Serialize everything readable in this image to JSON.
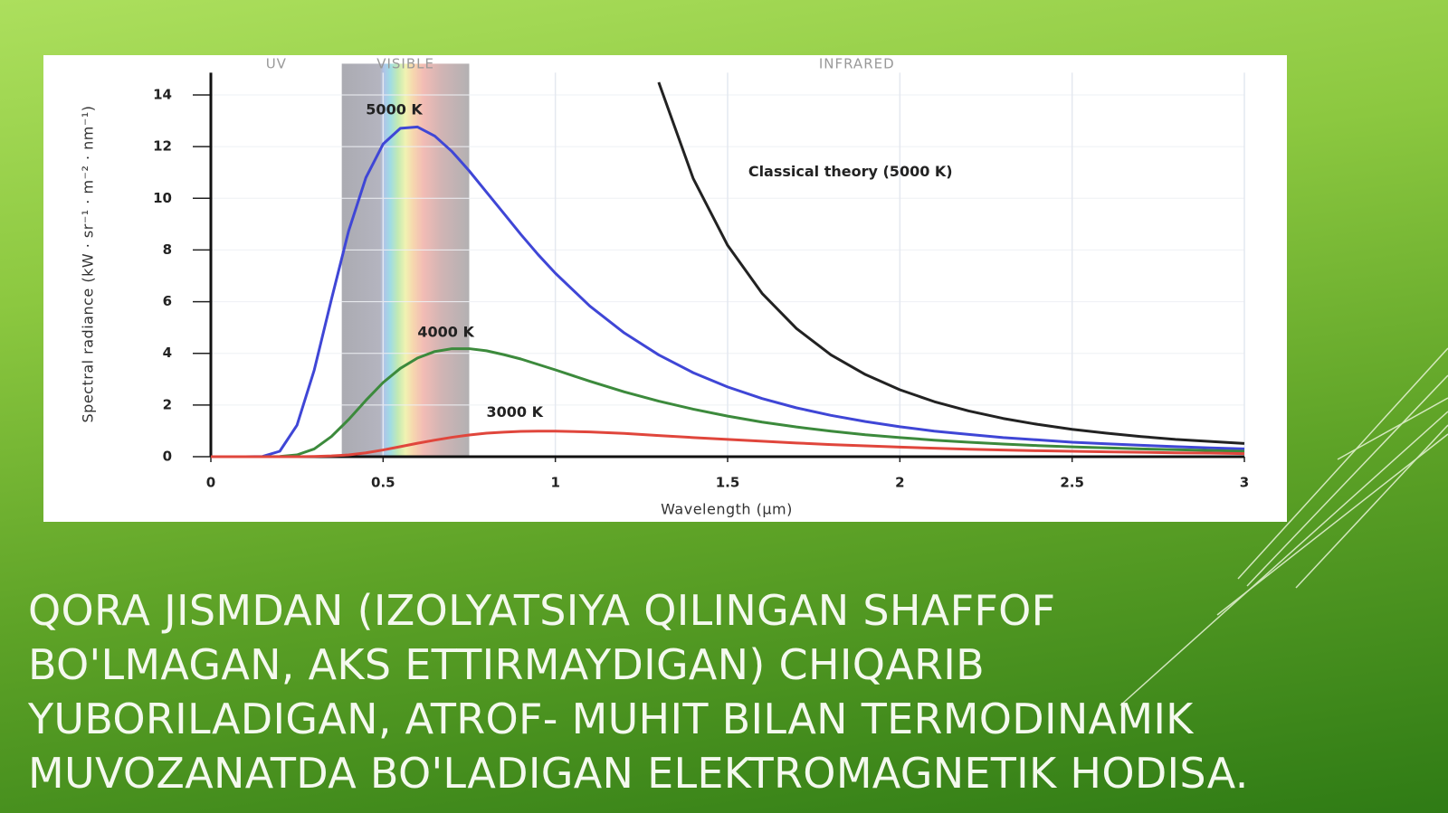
{
  "chart_data": {
    "type": "line",
    "x_label": "Wavelength (μm)",
    "y_label": "Spectral radiance (kW · sr⁻¹ · m⁻² · nm⁻¹)",
    "xlim": [
      0,
      3
    ],
    "ylim": [
      0,
      15
    ],
    "xticks": [
      0,
      0.5,
      1,
      1.5,
      2,
      2.5,
      3
    ],
    "yticks": [
      0,
      2,
      4,
      6,
      8,
      10,
      12,
      14
    ],
    "grid": true,
    "regions": [
      {
        "label": "UV",
        "range": [
          0,
          0.38
        ]
      },
      {
        "label": "VISIBLE",
        "range": [
          0.38,
          0.75
        ]
      },
      {
        "label": "INFRARED",
        "range": [
          0.75,
          3
        ]
      }
    ],
    "x": [
      0,
      0.1,
      0.15,
      0.2,
      0.25,
      0.3,
      0.35,
      0.4,
      0.45,
      0.5,
      0.55,
      0.6,
      0.65,
      0.7,
      0.75,
      0.8,
      0.85,
      0.9,
      0.95,
      1.0,
      1.1,
      1.2,
      1.3,
      1.4,
      1.5,
      1.6,
      1.7,
      1.8,
      1.9,
      2.0,
      2.1,
      2.2,
      2.3,
      2.4,
      2.5,
      2.6,
      2.7,
      2.8,
      2.9,
      3.0
    ],
    "series": [
      {
        "name": "5000 K",
        "color": "#3f46d6",
        "values": [
          0,
          0,
          0.01,
          0.21,
          1.22,
          3.35,
          6.09,
          8.74,
          10.8,
          12.1,
          12.71,
          12.76,
          12.41,
          11.81,
          11.06,
          10.24,
          9.42,
          8.6,
          7.82,
          7.1,
          5.83,
          4.79,
          3.94,
          3.25,
          2.7,
          2.25,
          1.89,
          1.6,
          1.36,
          1.16,
          0.99,
          0.86,
          0.74,
          0.65,
          0.56,
          0.5,
          0.44,
          0.39,
          0.34,
          0.3
        ]
      },
      {
        "name": "4000 K",
        "color": "#3c8a3c",
        "values": [
          0,
          0,
          0,
          0.01,
          0.07,
          0.3,
          0.78,
          1.44,
          2.18,
          2.87,
          3.42,
          3.82,
          4.07,
          4.18,
          4.18,
          4.1,
          3.95,
          3.78,
          3.57,
          3.36,
          2.92,
          2.51,
          2.15,
          1.84,
          1.57,
          1.34,
          1.15,
          0.99,
          0.85,
          0.74,
          0.64,
          0.56,
          0.49,
          0.43,
          0.38,
          0.34,
          0.3,
          0.27,
          0.24,
          0.21
        ]
      },
      {
        "name": "3000 K",
        "color": "#e0463c",
        "values": [
          0,
          0,
          0,
          0,
          0,
          0.01,
          0.03,
          0.07,
          0.15,
          0.26,
          0.39,
          0.52,
          0.64,
          0.75,
          0.84,
          0.91,
          0.95,
          0.98,
          0.99,
          0.99,
          0.96,
          0.9,
          0.82,
          0.74,
          0.67,
          0.6,
          0.53,
          0.47,
          0.42,
          0.37,
          0.33,
          0.29,
          0.26,
          0.23,
          0.21,
          0.19,
          0.17,
          0.15,
          0.14,
          0.12
        ]
      },
      {
        "name": "Classical theory (5000 K)",
        "color": "#222222",
        "values": [
          null,
          null,
          null,
          null,
          null,
          null,
          null,
          null,
          null,
          null,
          null,
          null,
          null,
          null,
          null,
          null,
          null,
          null,
          null,
          null,
          null,
          null,
          14.49,
          10.77,
          8.18,
          6.32,
          4.96,
          3.94,
          3.18,
          2.59,
          2.13,
          1.77,
          1.48,
          1.25,
          1.06,
          0.91,
          0.78,
          0.67,
          0.59,
          0.51
        ]
      }
    ]
  },
  "caption_lines": [
    "QORA JISMDAN (IZOLYATSIYA QILINGAN SHAFFOF",
    "BO'LMAGAN, AKS ETTIRMAYDIGAN) CHIQARIB",
    "YUBORILADIGAN, ATROF- MUHIT BILAN TERMODINAMIK",
    "MUVOZANATDA BO'LADIGAN ELEKTROMAGNETIK HODISA."
  ]
}
